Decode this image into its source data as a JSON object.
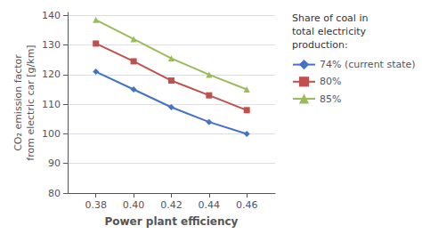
{
  "chart_data": {
    "type": "line",
    "x": [
      0.38,
      0.4,
      0.42,
      0.44,
      0.46
    ],
    "series": [
      {
        "name": "74% (current state)",
        "color": "#4472C4",
        "marker": "diamond",
        "values": [
          121,
          115,
          109,
          104,
          100
        ]
      },
      {
        "name": "80%",
        "color": "#C0504D",
        "marker": "square",
        "values": [
          130.5,
          124.5,
          118,
          113,
          108
        ]
      },
      {
        "name": "85%",
        "color": "#9BBB59",
        "marker": "triangle",
        "values": [
          138.5,
          132,
          125.5,
          120,
          115
        ]
      }
    ],
    "xlabel": "Power plant efficiency",
    "ylabel": "CO₂ emission factor\nfrom electric car [g/km]",
    "legend_title": "Share of coal in\ntotal electricity\nproduction:",
    "legend": "right",
    "xlim": [
      0.365,
      0.475
    ],
    "ylim": [
      80,
      141
    ],
    "xticks": [
      0.38,
      {
        "value": 0.4,
        "label": "0.40"
      },
      0.42,
      0.44,
      0.46
    ],
    "yticks": [
      80,
      90,
      100,
      110,
      120,
      130,
      140
    ],
    "grid": "y"
  }
}
